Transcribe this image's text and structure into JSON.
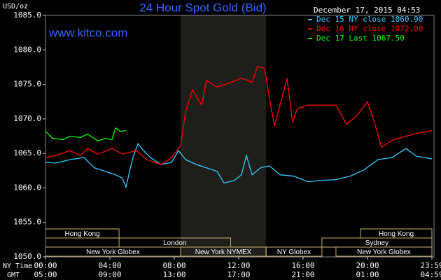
{
  "chart_data": {
    "type": "line",
    "title": "24 Hour Spot Gold (Bid)",
    "y_unit": "USD/oz",
    "website": "www.kitco.com",
    "timestamp": "December 17, 2015 04:53",
    "xlim": [
      0,
      24
    ],
    "ylim": [
      1050,
      1085
    ],
    "yticks": [
      {
        "value": 1050,
        "label": "1050.0"
      },
      {
        "value": 1055,
        "label": "1055.0"
      },
      {
        "value": 1060,
        "label": "1060.0"
      },
      {
        "value": 1065,
        "label": "1065.0"
      },
      {
        "value": 1070,
        "label": "1070.0"
      },
      {
        "value": 1075,
        "label": "1075.0"
      },
      {
        "value": 1080,
        "label": "1080.0"
      },
      {
        "value": 1085,
        "label": "1085.0"
      }
    ],
    "xticks": [
      {
        "value": 0,
        "label": "00:00"
      },
      {
        "value": 4,
        "label": "04:00"
      },
      {
        "value": 8,
        "label": "08:00"
      },
      {
        "value": 12,
        "label": "12:00"
      },
      {
        "value": 16,
        "label": "16:00"
      },
      {
        "value": 20,
        "label": "20:00"
      },
      {
        "value": 24,
        "label": "23:59"
      }
    ],
    "gmt_ticks": [
      {
        "value": 0,
        "label": "05:00"
      },
      {
        "value": 4,
        "label": "09:00"
      },
      {
        "value": 8,
        "label": "13:00"
      },
      {
        "value": 12,
        "label": "17:00"
      },
      {
        "value": 16,
        "label": "21:00"
      },
      {
        "value": 20,
        "label": "01:00"
      },
      {
        "value": 24,
        "label": "04:59"
      }
    ],
    "x_row_labels": {
      "ny": "NY Time",
      "gmt": "GMT"
    },
    "highlight": [
      8.39,
      13.7
    ],
    "sessions": [
      {
        "label": "Hong Kong",
        "start": 0,
        "end": 4.57,
        "row": 0
      },
      {
        "label": "London",
        "start": 4.57,
        "end": 11.5,
        "row": 1
      },
      {
        "label": "New York Globex",
        "start": 0,
        "end": 8.39,
        "row": 2
      },
      {
        "label": "New York NYMEX",
        "start": 8.39,
        "end": 13.7,
        "row": 2
      },
      {
        "label": "NY Globex",
        "start": 13.7,
        "end": 17.17,
        "row": 2
      },
      {
        "label": "Sydney",
        "start": 17.17,
        "end": 24,
        "row": 1
      },
      {
        "label": "Hong Kong",
        "start": 19.57,
        "end": 24,
        "row": 0
      },
      {
        "label": "New York Globex",
        "start": 18.04,
        "end": 24,
        "row": 2
      }
    ],
    "series": [
      {
        "name": "Dec 15 NY close 1060.90",
        "color": "#33ccff",
        "x": [
          0,
          0.65,
          1.52,
          2.39,
          3.04,
          3.7,
          4.35,
          4.78,
          5,
          5.22,
          5.43,
          5.74,
          6.09,
          6.52,
          7.17,
          7.83,
          8.26,
          8.7,
          9.35,
          10,
          10.65,
          11.09,
          11.74,
          12.17,
          12.48,
          12.83,
          13.35,
          13.91,
          14.57,
          15.43,
          16.3,
          17.17,
          18.04,
          18.91,
          19.78,
          20.65,
          21.52,
          22.39,
          23.04,
          24
        ],
        "values": [
          1063.7,
          1063.6,
          1064.1,
          1064.4,
          1062.9,
          1062.4,
          1061.9,
          1061.4,
          1060.1,
          1062.4,
          1064.4,
          1066.4,
          1065.4,
          1064.4,
          1063.4,
          1063.7,
          1065.4,
          1064.1,
          1063.4,
          1062.9,
          1062.4,
          1060.7,
          1061.1,
          1061.9,
          1064.7,
          1061.9,
          1062.9,
          1063.2,
          1061.9,
          1061.7,
          1060.9,
          1061.1,
          1061.2,
          1061.7,
          1062.6,
          1064.1,
          1064.4,
          1065.7,
          1064.6,
          1064.2
        ]
      },
      {
        "name": "Dec 16 NY close 1072.00",
        "color": "#ff0000",
        "x": [
          0,
          0.65,
          1.52,
          2.17,
          2.61,
          3.26,
          4.13,
          4.78,
          5.65,
          6.3,
          7.17,
          7.83,
          8.39,
          8.7,
          9.13,
          9.7,
          10,
          10.65,
          11.52,
          12.17,
          12.83,
          13.17,
          13.61,
          13.91,
          14.22,
          14.57,
          15,
          15.35,
          15.65,
          16.3,
          17.17,
          18.04,
          18.7,
          19.35,
          20,
          20.43,
          20.87,
          21.52,
          22.39,
          23.26,
          24
        ],
        "values": [
          1064.4,
          1064.7,
          1065.4,
          1064.7,
          1065.7,
          1064.9,
          1065.7,
          1064.9,
          1065.4,
          1064.1,
          1063.4,
          1064.4,
          1066.1,
          1071.0,
          1074.2,
          1072.0,
          1075.6,
          1074.6,
          1075.3,
          1075.9,
          1075.3,
          1077.6,
          1077.3,
          1073.0,
          1069.0,
          1072.0,
          1075.9,
          1069.5,
          1071.5,
          1072.0,
          1072.0,
          1072.0,
          1069.2,
          1070.5,
          1072.5,
          1069.5,
          1065.9,
          1066.9,
          1067.5,
          1068.0,
          1068.3
        ]
      },
      {
        "name": "Dec 17 Last 1067.50",
        "color": "#00ff00",
        "x": [
          0,
          0.43,
          1.09,
          1.52,
          2.17,
          2.61,
          3.26,
          3.7,
          4.13,
          4.35,
          4.65,
          5
        ],
        "values": [
          1068.2,
          1067.2,
          1067.0,
          1067.5,
          1067.3,
          1067.8,
          1066.8,
          1067.2,
          1067.0,
          1068.7,
          1068.2,
          1068.3
        ]
      }
    ]
  }
}
